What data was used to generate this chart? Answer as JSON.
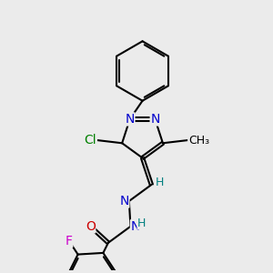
{
  "background_color": "#ebebeb",
  "bond_color": "#000000",
  "bond_width": 1.5,
  "atom_colors": {
    "N": "#0000cc",
    "O": "#cc0000",
    "F": "#cc00cc",
    "Cl": "#008000",
    "C": "#000000",
    "H": "#008080"
  },
  "font_size": 9,
  "figsize": [
    3.0,
    3.0
  ],
  "dpi": 100
}
